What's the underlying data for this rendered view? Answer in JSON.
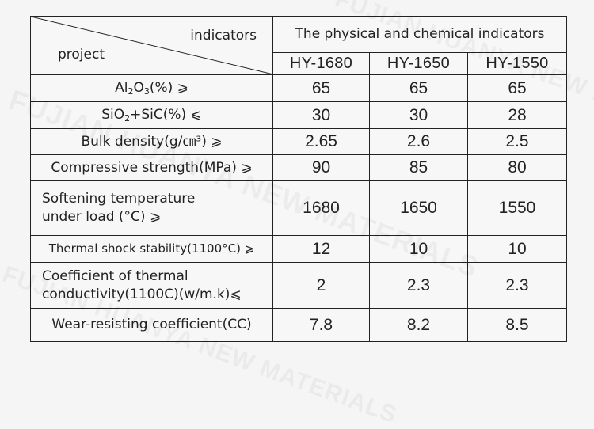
{
  "watermark": {
    "line1": "FUJIAN HUANYA NEW MATERIALS",
    "line2": "FUJIAN HUANYA NEW MATERIALS",
    "line3": "FUJIAN HUANYA NEW MATERIALS"
  },
  "header": {
    "indicators_label": "indicators",
    "project_label": "project",
    "group_title": "The physical and chemical indicators",
    "models": [
      "HY-1680",
      "HY-1650",
      "HY-1550"
    ]
  },
  "rows": [
    {
      "label_pre": "Al",
      "label_sub1": "2",
      "label_mid": "O",
      "label_sub2": "3",
      "label_post": "(%) ⩾",
      "values": [
        "65",
        "65",
        "65"
      ]
    },
    {
      "label_pre": "SiO",
      "label_sub1": "2",
      "label_post": "+SiC(%) ⩽",
      "values": [
        "30",
        "30",
        "28"
      ]
    },
    {
      "label": "Bulk density(g/㎝³) ⩾",
      "values": [
        "2.65",
        "2.6",
        "2.5"
      ]
    },
    {
      "label": "Compressive strength(MPa) ⩾",
      "values": [
        "90",
        "85",
        "80"
      ]
    },
    {
      "label_line1": "Softening temperature",
      "label_line2": "under load (°C) ⩾",
      "values": [
        "1680",
        "1650",
        "1550"
      ]
    },
    {
      "label": "Thermal shock stability(1100°C) ⩾",
      "values": [
        "12",
        "10",
        "10"
      ]
    },
    {
      "label_line1": "Coefficient of thermal",
      "label_line2": "conductivity(1100C)(w/m.k)⩽",
      "values": [
        "2",
        "2.3",
        "2.3"
      ]
    },
    {
      "label": "Wear-resisting coefficient(CC)",
      "values": [
        "7.8",
        "8.2",
        "8.5"
      ]
    }
  ]
}
